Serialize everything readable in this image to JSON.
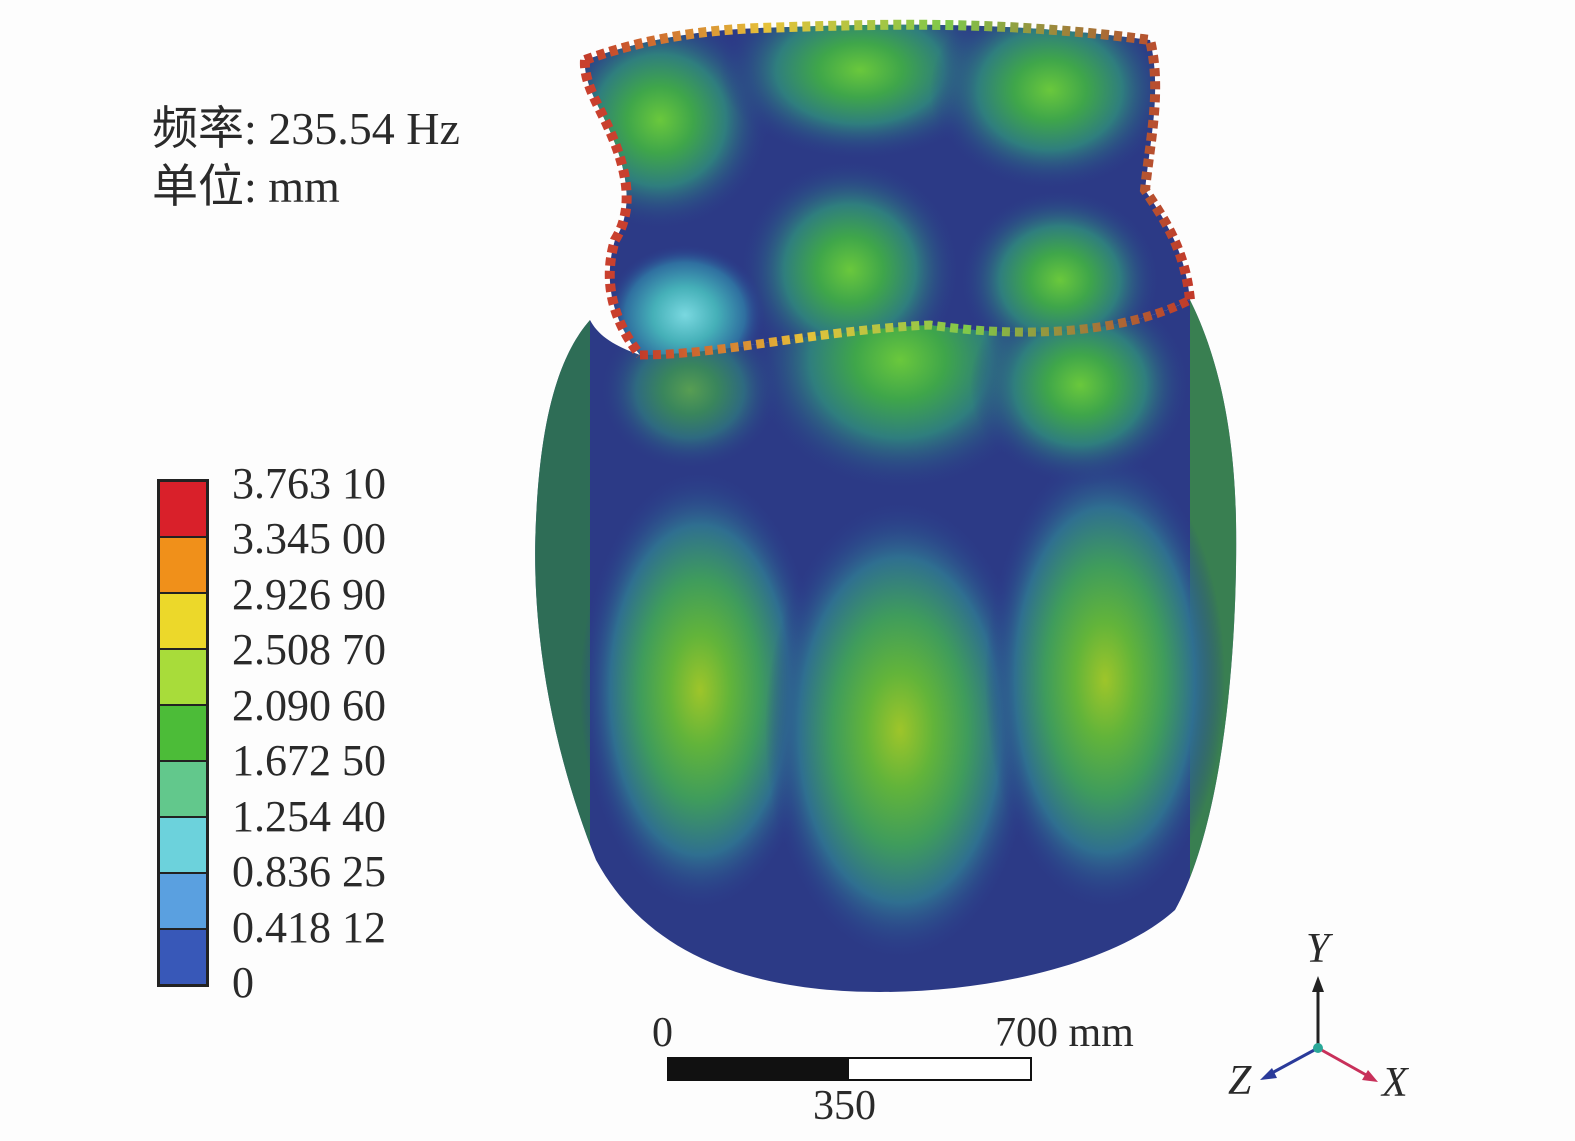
{
  "info": {
    "frequency": "频率: 235.54 Hz",
    "unit": "单位: mm"
  },
  "legend": {
    "values": [
      "3.763 10",
      "3.345 00",
      "2.926 90",
      "2.508 70",
      "2.090 60",
      "1.672 50",
      "1.254 40",
      "0.836 25",
      "0.418 12",
      "0"
    ],
    "colors": [
      "#d9202a",
      "#f0901a",
      "#ecd82a",
      "#a8dc3a",
      "#4cbc38",
      "#62c88c",
      "#6cd2dc",
      "#5aa0e0",
      "#3858b8"
    ]
  },
  "scale_bar": {
    "start": "0",
    "mid": "350",
    "end": "700 mm"
  },
  "axes": {
    "y": "Y",
    "x": "X",
    "z": "Z"
  }
}
